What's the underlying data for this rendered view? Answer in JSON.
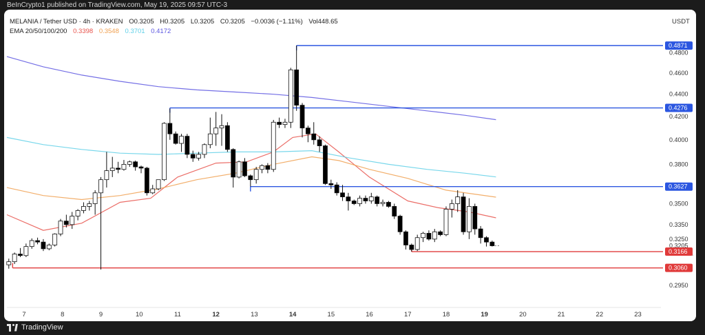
{
  "publish_line": "BeInCrypto1 published on TradingView.com, May 19, 2025 09:57 UTC-3",
  "header": {
    "symbol": "MELANIA / Tether USD · 4h · KRAKEN",
    "open": "O0.3205",
    "high": "H0.3205",
    "low": "L0.3205",
    "close": "C0.3205",
    "change": "−0.0036 (−1.11%)",
    "volume": "Vol448.65",
    "ema_label": "EMA 20/50/100/200",
    "ema20": "0.3398",
    "ema50": "0.3548",
    "ema100": "0.3701",
    "ema200": "0.4172"
  },
  "unit": "USDT",
  "footer": {
    "brand": "TradingView"
  },
  "colors": {
    "up": "#ffffff",
    "down": "#000000",
    "ema20": "#e8534c",
    "ema50": "#f0a050",
    "ema100": "#60d0e8",
    "ema200": "#5a55e0",
    "resistance": "#2b56e0",
    "support": "#e03a3a"
  },
  "chart_data": {
    "type": "candlestick",
    "y_scale": "log",
    "ylim": [
      0.285,
      0.5
    ],
    "x_range": [
      6.55,
      23.6
    ],
    "y_ticks": [
      "0.4800",
      "0.4600",
      "0.4400",
      "0.4200",
      "0.4000",
      "0.3800",
      "0.3500",
      "0.3350",
      "0.3250",
      "0.2950"
    ],
    "x_ticks": [
      {
        "label": "7",
        "x": 7,
        "bold": false
      },
      {
        "label": "8",
        "x": 8,
        "bold": false
      },
      {
        "label": "9",
        "x": 9,
        "bold": false
      },
      {
        "label": "10",
        "x": 10,
        "bold": false
      },
      {
        "label": "11",
        "x": 11,
        "bold": false
      },
      {
        "label": "12",
        "x": 12,
        "bold": true
      },
      {
        "label": "13",
        "x": 13,
        "bold": false
      },
      {
        "label": "14",
        "x": 14,
        "bold": true
      },
      {
        "label": "15",
        "x": 15,
        "bold": false
      },
      {
        "label": "16",
        "x": 16,
        "bold": false
      },
      {
        "label": "17",
        "x": 17,
        "bold": false
      },
      {
        "label": "18",
        "x": 18,
        "bold": false
      },
      {
        "label": "19",
        "x": 19,
        "bold": true
      },
      {
        "label": "20",
        "x": 20,
        "bold": false
      },
      {
        "label": "21",
        "x": 21,
        "bold": false
      },
      {
        "label": "22",
        "x": 22,
        "bold": false
      },
      {
        "label": "23",
        "x": 23,
        "bold": false
      }
    ],
    "candles": [
      {
        "x": 6.6,
        "o": 0.308,
        "h": 0.312,
        "l": 0.3055,
        "c": 0.31
      },
      {
        "x": 6.75,
        "o": 0.31,
        "h": 0.316,
        "l": 0.3085,
        "c": 0.315
      },
      {
        "x": 6.9,
        "o": 0.315,
        "h": 0.319,
        "l": 0.313,
        "c": 0.314
      },
      {
        "x": 7.05,
        "o": 0.314,
        "h": 0.322,
        "l": 0.313,
        "c": 0.32
      },
      {
        "x": 7.2,
        "o": 0.32,
        "h": 0.3255,
        "l": 0.3185,
        "c": 0.324
      },
      {
        "x": 7.35,
        "o": 0.324,
        "h": 0.326,
        "l": 0.3215,
        "c": 0.323
      },
      {
        "x": 7.5,
        "o": 0.323,
        "h": 0.325,
        "l": 0.317,
        "c": 0.3185
      },
      {
        "x": 7.65,
        "o": 0.3185,
        "h": 0.322,
        "l": 0.3175,
        "c": 0.321
      },
      {
        "x": 7.8,
        "o": 0.321,
        "h": 0.329,
        "l": 0.32,
        "c": 0.3285
      },
      {
        "x": 7.95,
        "o": 0.3285,
        "h": 0.339,
        "l": 0.327,
        "c": 0.3375
      },
      {
        "x": 8.1,
        "o": 0.3375,
        "h": 0.342,
        "l": 0.333,
        "c": 0.335
      },
      {
        "x": 8.25,
        "o": 0.335,
        "h": 0.344,
        "l": 0.332,
        "c": 0.341
      },
      {
        "x": 8.4,
        "o": 0.341,
        "h": 0.346,
        "l": 0.338,
        "c": 0.345
      },
      {
        "x": 8.55,
        "o": 0.345,
        "h": 0.351,
        "l": 0.343,
        "c": 0.348
      },
      {
        "x": 8.7,
        "o": 0.348,
        "h": 0.352,
        "l": 0.345,
        "c": 0.35
      },
      {
        "x": 8.85,
        "o": 0.35,
        "h": 0.36,
        "l": 0.342,
        "c": 0.358
      },
      {
        "x": 9.0,
        "o": 0.358,
        "h": 0.37,
        "l": 0.305,
        "c": 0.368
      },
      {
        "x": 9.15,
        "o": 0.368,
        "h": 0.39,
        "l": 0.362,
        "c": 0.375
      },
      {
        "x": 9.3,
        "o": 0.375,
        "h": 0.386,
        "l": 0.37,
        "c": 0.377
      },
      {
        "x": 9.45,
        "o": 0.377,
        "h": 0.382,
        "l": 0.373,
        "c": 0.376
      },
      {
        "x": 9.6,
        "o": 0.376,
        "h": 0.3835,
        "l": 0.375,
        "c": 0.38
      },
      {
        "x": 9.75,
        "o": 0.38,
        "h": 0.383,
        "l": 0.378,
        "c": 0.382
      },
      {
        "x": 9.9,
        "o": 0.382,
        "h": 0.383,
        "l": 0.375,
        "c": 0.378
      },
      {
        "x": 10.05,
        "o": 0.378,
        "h": 0.379,
        "l": 0.373,
        "c": 0.377
      },
      {
        "x": 10.2,
        "o": 0.377,
        "h": 0.378,
        "l": 0.356,
        "c": 0.358
      },
      {
        "x": 10.35,
        "o": 0.358,
        "h": 0.364,
        "l": 0.357,
        "c": 0.361
      },
      {
        "x": 10.5,
        "o": 0.361,
        "h": 0.368,
        "l": 0.36,
        "c": 0.368
      },
      {
        "x": 10.65,
        "o": 0.368,
        "h": 0.415,
        "l": 0.367,
        "c": 0.414
      },
      {
        "x": 10.8,
        "o": 0.414,
        "h": 0.427,
        "l": 0.4,
        "c": 0.405
      },
      {
        "x": 10.95,
        "o": 0.405,
        "h": 0.407,
        "l": 0.396,
        "c": 0.397
      },
      {
        "x": 11.1,
        "o": 0.397,
        "h": 0.405,
        "l": 0.39,
        "c": 0.403
      },
      {
        "x": 11.25,
        "o": 0.403,
        "h": 0.405,
        "l": 0.385,
        "c": 0.388
      },
      {
        "x": 11.4,
        "o": 0.388,
        "h": 0.391,
        "l": 0.382,
        "c": 0.385
      },
      {
        "x": 11.55,
        "o": 0.385,
        "h": 0.39,
        "l": 0.383,
        "c": 0.388
      },
      {
        "x": 11.7,
        "o": 0.388,
        "h": 0.397,
        "l": 0.385,
        "c": 0.396
      },
      {
        "x": 11.85,
        "o": 0.396,
        "h": 0.419,
        "l": 0.393,
        "c": 0.405
      },
      {
        "x": 12.0,
        "o": 0.405,
        "h": 0.424,
        "l": 0.395,
        "c": 0.41
      },
      {
        "x": 12.15,
        "o": 0.41,
        "h": 0.422,
        "l": 0.395,
        "c": 0.412
      },
      {
        "x": 12.3,
        "o": 0.412,
        "h": 0.415,
        "l": 0.39,
        "c": 0.392
      },
      {
        "x": 12.45,
        "o": 0.392,
        "h": 0.393,
        "l": 0.362,
        "c": 0.37
      },
      {
        "x": 12.6,
        "o": 0.37,
        "h": 0.383,
        "l": 0.369,
        "c": 0.382
      },
      {
        "x": 12.75,
        "o": 0.382,
        "h": 0.385,
        "l": 0.37,
        "c": 0.371
      },
      {
        "x": 12.9,
        "o": 0.371,
        "h": 0.372,
        "l": 0.3627,
        "c": 0.368
      },
      {
        "x": 13.05,
        "o": 0.368,
        "h": 0.378,
        "l": 0.365,
        "c": 0.376
      },
      {
        "x": 13.2,
        "o": 0.376,
        "h": 0.38,
        "l": 0.373,
        "c": 0.379
      },
      {
        "x": 13.35,
        "o": 0.379,
        "h": 0.381,
        "l": 0.373,
        "c": 0.376
      },
      {
        "x": 13.5,
        "o": 0.376,
        "h": 0.417,
        "l": 0.374,
        "c": 0.415
      },
      {
        "x": 13.65,
        "o": 0.415,
        "h": 0.419,
        "l": 0.41,
        "c": 0.413
      },
      {
        "x": 13.8,
        "o": 0.413,
        "h": 0.418,
        "l": 0.41,
        "c": 0.415
      },
      {
        "x": 13.95,
        "o": 0.415,
        "h": 0.465,
        "l": 0.41,
        "c": 0.463
      },
      {
        "x": 14.1,
        "o": 0.463,
        "h": 0.4871,
        "l": 0.425,
        "c": 0.43
      },
      {
        "x": 14.25,
        "o": 0.43,
        "h": 0.432,
        "l": 0.402,
        "c": 0.41
      },
      {
        "x": 14.4,
        "o": 0.41,
        "h": 0.412,
        "l": 0.398,
        "c": 0.405
      },
      {
        "x": 14.55,
        "o": 0.405,
        "h": 0.415,
        "l": 0.396,
        "c": 0.4
      },
      {
        "x": 14.7,
        "o": 0.4,
        "h": 0.403,
        "l": 0.39,
        "c": 0.395
      },
      {
        "x": 14.85,
        "o": 0.395,
        "h": 0.396,
        "l": 0.364,
        "c": 0.365
      },
      {
        "x": 15.0,
        "o": 0.365,
        "h": 0.368,
        "l": 0.361,
        "c": 0.364
      },
      {
        "x": 15.15,
        "o": 0.364,
        "h": 0.366,
        "l": 0.356,
        "c": 0.358
      },
      {
        "x": 15.3,
        "o": 0.358,
        "h": 0.364,
        "l": 0.352,
        "c": 0.355
      },
      {
        "x": 15.45,
        "o": 0.355,
        "h": 0.358,
        "l": 0.345,
        "c": 0.352
      },
      {
        "x": 15.6,
        "o": 0.352,
        "h": 0.353,
        "l": 0.349,
        "c": 0.35
      },
      {
        "x": 15.75,
        "o": 0.35,
        "h": 0.356,
        "l": 0.348,
        "c": 0.354
      },
      {
        "x": 15.9,
        "o": 0.354,
        "h": 0.356,
        "l": 0.35,
        "c": 0.352
      },
      {
        "x": 16.05,
        "o": 0.352,
        "h": 0.358,
        "l": 0.35,
        "c": 0.355
      },
      {
        "x": 16.2,
        "o": 0.355,
        "h": 0.356,
        "l": 0.348,
        "c": 0.35
      },
      {
        "x": 16.35,
        "o": 0.35,
        "h": 0.353,
        "l": 0.348,
        "c": 0.351
      },
      {
        "x": 16.5,
        "o": 0.351,
        "h": 0.352,
        "l": 0.347,
        "c": 0.348
      },
      {
        "x": 16.65,
        "o": 0.348,
        "h": 0.35,
        "l": 0.339,
        "c": 0.341
      },
      {
        "x": 16.8,
        "o": 0.341,
        "h": 0.342,
        "l": 0.328,
        "c": 0.33
      },
      {
        "x": 16.95,
        "o": 0.33,
        "h": 0.331,
        "l": 0.318,
        "c": 0.321
      },
      {
        "x": 17.1,
        "o": 0.321,
        "h": 0.322,
        "l": 0.3166,
        "c": 0.318
      },
      {
        "x": 17.25,
        "o": 0.318,
        "h": 0.328,
        "l": 0.317,
        "c": 0.326
      },
      {
        "x": 17.4,
        "o": 0.326,
        "h": 0.33,
        "l": 0.323,
        "c": 0.329
      },
      {
        "x": 17.55,
        "o": 0.329,
        "h": 0.331,
        "l": 0.324,
        "c": 0.325
      },
      {
        "x": 17.7,
        "o": 0.325,
        "h": 0.332,
        "l": 0.323,
        "c": 0.33
      },
      {
        "x": 17.85,
        "o": 0.33,
        "h": 0.331,
        "l": 0.327,
        "c": 0.328
      },
      {
        "x": 18.0,
        "o": 0.328,
        "h": 0.348,
        "l": 0.327,
        "c": 0.346
      },
      {
        "x": 18.15,
        "o": 0.346,
        "h": 0.353,
        "l": 0.34,
        "c": 0.35
      },
      {
        "x": 18.3,
        "o": 0.35,
        "h": 0.36,
        "l": 0.344,
        "c": 0.355
      },
      {
        "x": 18.45,
        "o": 0.355,
        "h": 0.358,
        "l": 0.328,
        "c": 0.33
      },
      {
        "x": 18.6,
        "o": 0.33,
        "h": 0.354,
        "l": 0.325,
        "c": 0.348
      },
      {
        "x": 18.75,
        "o": 0.348,
        "h": 0.35,
        "l": 0.328,
        "c": 0.332
      },
      {
        "x": 18.9,
        "o": 0.332,
        "h": 0.334,
        "l": 0.322,
        "c": 0.326
      },
      {
        "x": 19.05,
        "o": 0.326,
        "h": 0.327,
        "l": 0.32,
        "c": 0.323
      },
      {
        "x": 19.2,
        "o": 0.323,
        "h": 0.324,
        "l": 0.32,
        "c": 0.3205
      }
    ],
    "ema_lines": [
      {
        "name": "EMA 20",
        "color": "#e8534c",
        "points": [
          [
            6.55,
            0.342
          ],
          [
            7.5,
            0.331
          ],
          [
            8.5,
            0.336
          ],
          [
            9.5,
            0.351
          ],
          [
            10.3,
            0.354
          ],
          [
            11,
            0.37
          ],
          [
            12,
            0.381
          ],
          [
            12.8,
            0.382
          ],
          [
            13.5,
            0.39
          ],
          [
            14,
            0.402
          ],
          [
            14.6,
            0.405
          ],
          [
            15.2,
            0.39
          ],
          [
            16,
            0.37
          ],
          [
            17,
            0.352
          ],
          [
            17.8,
            0.347
          ],
          [
            18.6,
            0.344
          ],
          [
            19.3,
            0.3398
          ]
        ]
      },
      {
        "name": "EMA 50",
        "color": "#f0a050",
        "points": [
          [
            6.55,
            0.362
          ],
          [
            7.5,
            0.356
          ],
          [
            8.5,
            0.353
          ],
          [
            9.5,
            0.356
          ],
          [
            10.5,
            0.361
          ],
          [
            11.5,
            0.368
          ],
          [
            12.5,
            0.373
          ],
          [
            13.5,
            0.38
          ],
          [
            14.5,
            0.386
          ],
          [
            15.2,
            0.383
          ],
          [
            16,
            0.376
          ],
          [
            17,
            0.369
          ],
          [
            18,
            0.36
          ],
          [
            19.3,
            0.3548
          ]
        ]
      },
      {
        "name": "EMA 100",
        "color": "#60d0e8",
        "points": [
          [
            6.55,
            0.402
          ],
          [
            7.5,
            0.396
          ],
          [
            8.5,
            0.392
          ],
          [
            9.5,
            0.389
          ],
          [
            10.5,
            0.388
          ],
          [
            11.5,
            0.389
          ],
          [
            12.5,
            0.39
          ],
          [
            13.5,
            0.39
          ],
          [
            14.5,
            0.391
          ],
          [
            15.5,
            0.385
          ],
          [
            16.5,
            0.38
          ],
          [
            17.5,
            0.376
          ],
          [
            18.5,
            0.373
          ],
          [
            19.3,
            0.3701
          ]
        ]
      },
      {
        "name": "EMA 200",
        "color": "#5a55e0",
        "points": [
          [
            6.55,
            0.476
          ],
          [
            7.5,
            0.466
          ],
          [
            8.5,
            0.458
          ],
          [
            9.5,
            0.452
          ],
          [
            10.5,
            0.447
          ],
          [
            11.5,
            0.444
          ],
          [
            12.5,
            0.442
          ],
          [
            13.5,
            0.44
          ],
          [
            14.5,
            0.437
          ],
          [
            15.5,
            0.433
          ],
          [
            16.5,
            0.429
          ],
          [
            17.5,
            0.425
          ],
          [
            18.5,
            0.421
          ],
          [
            19.3,
            0.4172
          ]
        ]
      }
    ],
    "levels": [
      {
        "value": 0.4871,
        "label": "0.4871",
        "color": "#2b56e0",
        "x_start": 14.1
      },
      {
        "value": 0.4276,
        "label": "0.4276",
        "color": "#2b56e0",
        "x_start": 10.8
      },
      {
        "value": 0.3627,
        "label": "0.3627",
        "color": "#2b56e0",
        "x_start": 12.9
      },
      {
        "value": 0.3166,
        "label": "0.3166",
        "color": "#e03a3a",
        "x_start": 17.1
      },
      {
        "value": 0.306,
        "label": "0.3060",
        "color": "#e03a3a",
        "x_start": 6.7
      }
    ],
    "current_price": {
      "value": 0.3205,
      "label": "0.3205",
      "countdown": "03:02:31"
    }
  }
}
